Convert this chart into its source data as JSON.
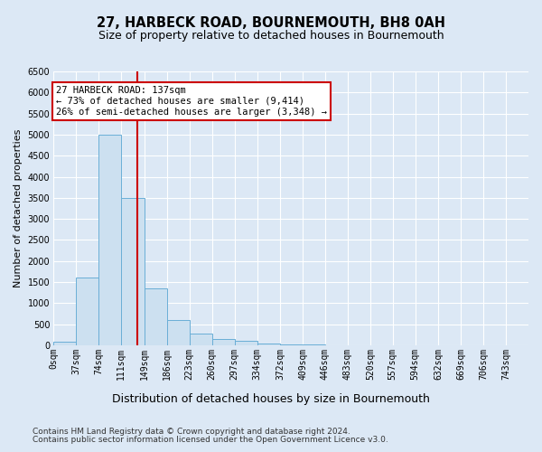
{
  "title": "27, HARBECK ROAD, BOURNEMOUTH, BH8 0AH",
  "subtitle": "Size of property relative to detached houses in Bournemouth",
  "xlabel": "Distribution of detached houses by size in Bournemouth",
  "ylabel": "Number of detached properties",
  "bin_labels": [
    "0sqm",
    "37sqm",
    "74sqm",
    "111sqm",
    "149sqm",
    "186sqm",
    "223sqm",
    "260sqm",
    "297sqm",
    "334sqm",
    "372sqm",
    "409sqm",
    "446sqm",
    "483sqm",
    "520sqm",
    "557sqm",
    "594sqm",
    "632sqm",
    "669sqm",
    "706sqm",
    "743sqm"
  ],
  "bin_edges": [
    0,
    37,
    74,
    111,
    149,
    186,
    223,
    260,
    297,
    334,
    372,
    409,
    446,
    483,
    520,
    557,
    594,
    632,
    669,
    706,
    743,
    780
  ],
  "bar_heights": [
    90,
    1600,
    5000,
    3500,
    1350,
    590,
    275,
    150,
    110,
    50,
    25,
    18,
    10,
    5,
    3,
    2,
    1,
    1,
    0,
    0,
    0
  ],
  "bar_color": "#cce0f0",
  "bar_edge_color": "#6aaed6",
  "vline_x": 137,
  "vline_color": "#cc0000",
  "annotation_line1": "27 HARBECK ROAD: 137sqm",
  "annotation_line2": "← 73% of detached houses are smaller (9,414)",
  "annotation_line3": "26% of semi-detached houses are larger (3,348) →",
  "annotation_box_edgecolor": "#cc0000",
  "ylim": [
    0,
    6500
  ],
  "yticks": [
    0,
    500,
    1000,
    1500,
    2000,
    2500,
    3000,
    3500,
    4000,
    4500,
    5000,
    5500,
    6000,
    6500
  ],
  "bg_color": "#dce8f5",
  "plot_bg_color": "#dce8f5",
  "grid_color": "#ffffff",
  "title_fontsize": 10.5,
  "subtitle_fontsize": 9,
  "xlabel_fontsize": 9,
  "ylabel_fontsize": 8,
  "tick_fontsize": 7,
  "annotation_fontsize": 7.5,
  "footer_fontsize": 6.5,
  "footer1": "Contains HM Land Registry data © Crown copyright and database right 2024.",
  "footer2": "Contains public sector information licensed under the Open Government Licence v3.0."
}
